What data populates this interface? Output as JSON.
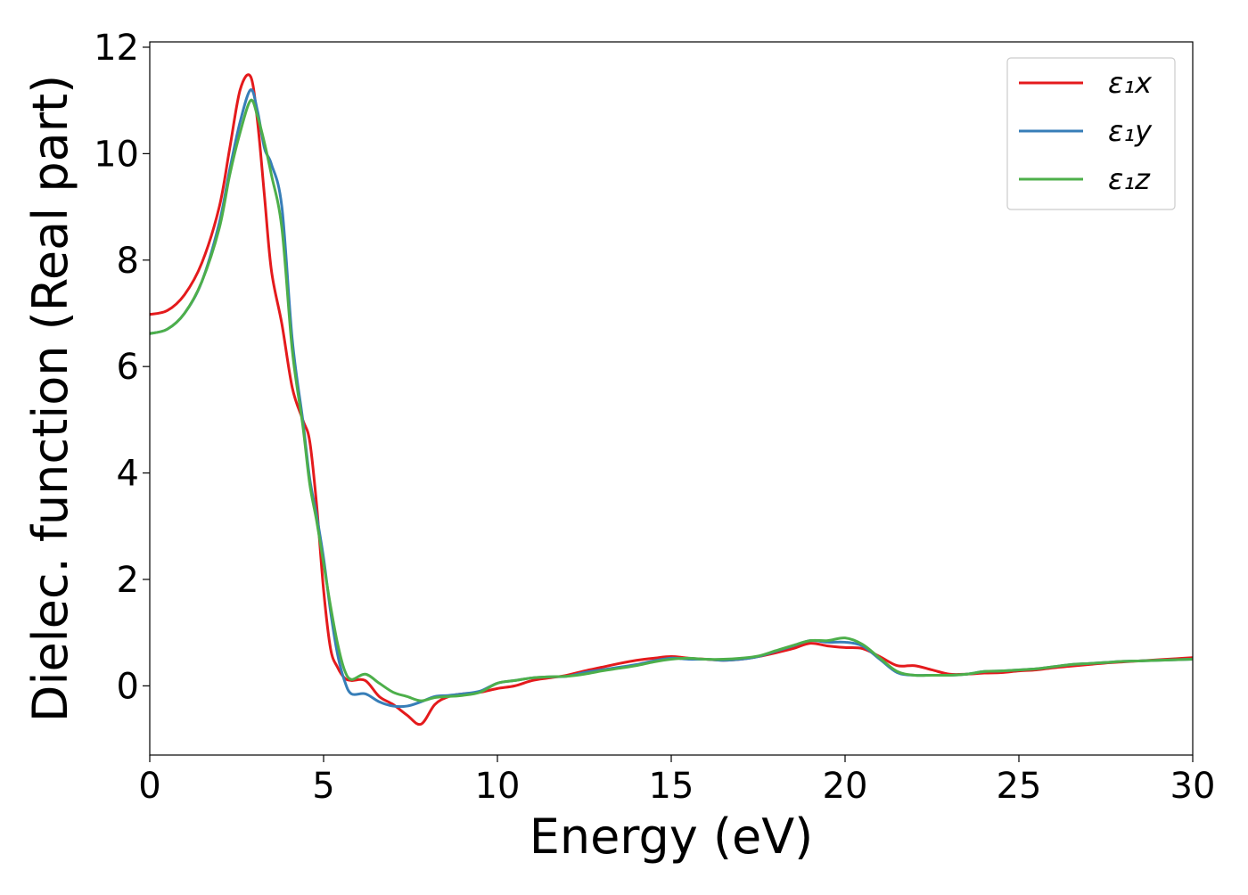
{
  "chart_data": {
    "type": "line",
    "title": "",
    "xlabel": "Energy (eV)",
    "ylabel": "Dielec. function (Real part)",
    "xlim": [
      0,
      30
    ],
    "ylim": [
      -1.3,
      12.1
    ],
    "xticks": [
      0,
      5,
      10,
      15,
      20,
      25,
      30
    ],
    "yticks": [
      0,
      2,
      4,
      6,
      8,
      10,
      12
    ],
    "xtick_labels": [
      "0",
      "5",
      "10",
      "15",
      "20",
      "25",
      "30"
    ],
    "ytick_labels": [
      "0",
      "2",
      "4",
      "6",
      "8",
      "10",
      "12"
    ],
    "grid": false,
    "legend_position": "top-right",
    "series": [
      {
        "name": "ε₁x",
        "color": "#e41a1c",
        "x": [
          0,
          0.5,
          1,
          1.5,
          2,
          2.3,
          2.6,
          2.9,
          3.1,
          3.3,
          3.5,
          3.8,
          4.1,
          4.4,
          4.6,
          4.8,
          5.0,
          5.2,
          5.4,
          5.6,
          5.8,
          6.2,
          6.6,
          7.0,
          7.4,
          7.8,
          8.2,
          8.6,
          9.0,
          9.5,
          10,
          10.5,
          11,
          11.5,
          12,
          12.5,
          13,
          13.5,
          14,
          14.5,
          15,
          15.5,
          16,
          16.5,
          17,
          17.5,
          18,
          18.5,
          19,
          19.5,
          20,
          20.5,
          21,
          21.5,
          22,
          22.5,
          23,
          23.5,
          24,
          24.5,
          25,
          25.5,
          26,
          26.5,
          27,
          27.5,
          28,
          28.5,
          29,
          29.5,
          30
        ],
        "y": [
          6.98,
          7.05,
          7.35,
          7.95,
          9.0,
          10.1,
          11.2,
          11.45,
          10.6,
          9.2,
          7.8,
          6.8,
          5.6,
          5.0,
          4.6,
          3.4,
          1.8,
          0.7,
          0.35,
          0.15,
          0.1,
          0.1,
          -0.2,
          -0.35,
          -0.55,
          -0.72,
          -0.35,
          -0.2,
          -0.15,
          -0.12,
          -0.05,
          0.0,
          0.1,
          0.15,
          0.2,
          0.28,
          0.35,
          0.42,
          0.48,
          0.52,
          0.55,
          0.52,
          0.5,
          0.48,
          0.5,
          0.55,
          0.62,
          0.7,
          0.8,
          0.75,
          0.72,
          0.7,
          0.55,
          0.38,
          0.38,
          0.3,
          0.22,
          0.22,
          0.24,
          0.25,
          0.28,
          0.3,
          0.34,
          0.37,
          0.4,
          0.43,
          0.45,
          0.47,
          0.49,
          0.51,
          0.53
        ]
      },
      {
        "name": "ε₁y",
        "color": "#377eb8",
        "x": [
          0,
          0.5,
          1,
          1.5,
          2,
          2.3,
          2.6,
          2.9,
          3.1,
          3.3,
          3.5,
          3.8,
          4.1,
          4.4,
          4.6,
          4.8,
          5.0,
          5.2,
          5.4,
          5.6,
          5.8,
          6.2,
          6.6,
          7.0,
          7.4,
          7.8,
          8.2,
          8.6,
          9.0,
          9.5,
          10,
          10.5,
          11,
          11.5,
          12,
          12.5,
          13,
          13.5,
          14,
          14.5,
          15,
          15.5,
          16,
          16.5,
          17,
          17.5,
          18,
          18.5,
          19,
          19.5,
          20,
          20.5,
          21,
          21.5,
          22,
          22.5,
          23,
          23.5,
          24,
          24.5,
          25,
          25.5,
          26,
          26.5,
          27,
          27.5,
          28,
          28.5,
          29,
          29.5,
          30
        ],
        "y": [
          6.62,
          6.7,
          7.0,
          7.6,
          8.7,
          9.7,
          10.6,
          11.2,
          10.8,
          10.1,
          9.8,
          9.0,
          6.5,
          5.0,
          3.9,
          3.2,
          2.4,
          1.4,
          0.6,
          0.1,
          -0.15,
          -0.15,
          -0.3,
          -0.38,
          -0.38,
          -0.3,
          -0.2,
          -0.18,
          -0.15,
          -0.1,
          0.05,
          0.1,
          0.15,
          0.17,
          0.18,
          0.25,
          0.3,
          0.35,
          0.4,
          0.47,
          0.52,
          0.5,
          0.5,
          0.48,
          0.5,
          0.55,
          0.65,
          0.75,
          0.85,
          0.82,
          0.82,
          0.75,
          0.5,
          0.25,
          0.2,
          0.2,
          0.2,
          0.22,
          0.27,
          0.28,
          0.3,
          0.32,
          0.36,
          0.4,
          0.42,
          0.44,
          0.46,
          0.47,
          0.48,
          0.49,
          0.5
        ]
      },
      {
        "name": "ε₁z",
        "color": "#4daf4a",
        "x": [
          0,
          0.5,
          1,
          1.5,
          2,
          2.3,
          2.6,
          2.9,
          3.1,
          3.3,
          3.5,
          3.8,
          4.1,
          4.4,
          4.6,
          4.8,
          5.0,
          5.2,
          5.4,
          5.6,
          5.8,
          6.2,
          6.6,
          7.0,
          7.4,
          7.8,
          8.2,
          8.6,
          9.0,
          9.5,
          10,
          10.5,
          11,
          11.5,
          12,
          12.5,
          13,
          13.5,
          14,
          14.5,
          15,
          15.5,
          16,
          16.5,
          17,
          17.5,
          18,
          18.5,
          19,
          19.5,
          20,
          20.5,
          21,
          21.5,
          22,
          22.5,
          23,
          23.5,
          24,
          24.5,
          25,
          25.5,
          26,
          26.5,
          27,
          27.5,
          28,
          28.5,
          29,
          29.5,
          30
        ],
        "y": [
          6.62,
          6.7,
          7.0,
          7.6,
          8.6,
          9.6,
          10.4,
          11.0,
          10.7,
          10.2,
          9.6,
          8.6,
          6.3,
          4.9,
          3.8,
          3.1,
          2.3,
          1.5,
          0.8,
          0.3,
          0.12,
          0.22,
          0.05,
          -0.12,
          -0.2,
          -0.28,
          -0.22,
          -0.2,
          -0.18,
          -0.12,
          0.05,
          0.1,
          0.15,
          0.17,
          0.18,
          0.22,
          0.28,
          0.33,
          0.38,
          0.45,
          0.5,
          0.52,
          0.5,
          0.5,
          0.52,
          0.56,
          0.66,
          0.76,
          0.85,
          0.85,
          0.9,
          0.78,
          0.52,
          0.27,
          0.2,
          0.2,
          0.2,
          0.22,
          0.27,
          0.28,
          0.3,
          0.32,
          0.36,
          0.4,
          0.42,
          0.44,
          0.46,
          0.47,
          0.48,
          0.49,
          0.5
        ]
      }
    ]
  }
}
